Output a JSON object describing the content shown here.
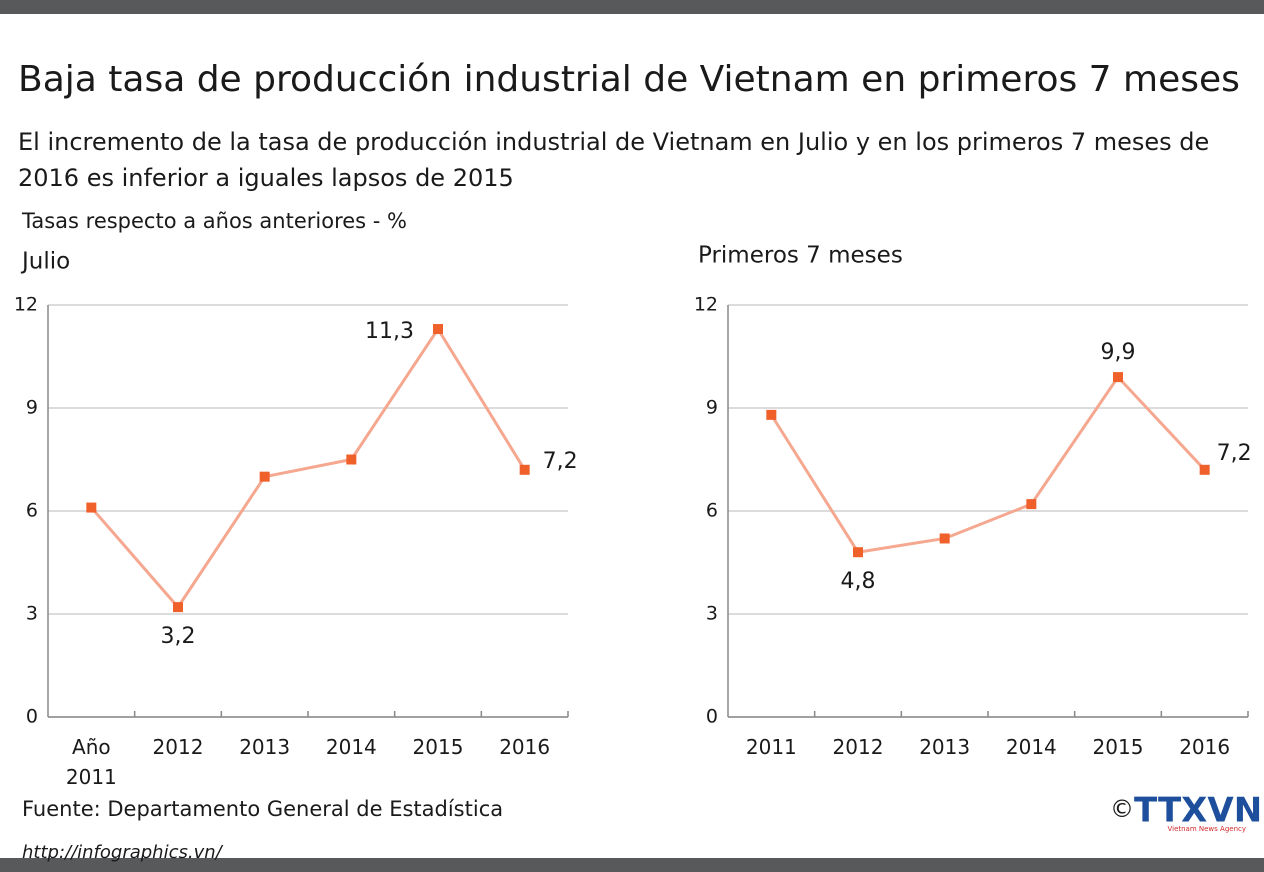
{
  "header": {
    "title": "Baja tasa de producción industrial de Vietnam en primeros 7 meses",
    "subtitle": "El incremento de la tasa de producción industrial de Vietnam en Julio y en los primeros 7 meses de 2016 es inferior a iguales lapsos de 2015",
    "unit_note": "Tasas respecto a años anteriores - %"
  },
  "chart_data": [
    {
      "type": "line",
      "title": "Julio",
      "categories": [
        "Año 2011",
        "2012",
        "2013",
        "2014",
        "2015",
        "2016"
      ],
      "values": [
        6.1,
        3.2,
        7.0,
        7.5,
        11.3,
        7.2
      ],
      "value_labels": [
        null,
        "3,2",
        null,
        null,
        "11,3",
        "7,2"
      ],
      "color": "#f5a78f",
      "marker_color": "#f0602a",
      "ylim": [
        0,
        12
      ],
      "yticks": [
        0,
        3,
        6,
        9,
        12
      ],
      "grid": true
    },
    {
      "type": "line",
      "title": "Primeros 7 meses",
      "categories": [
        "2011",
        "2012",
        "2013",
        "2014",
        "2015",
        "2016"
      ],
      "values": [
        8.8,
        4.8,
        5.2,
        6.2,
        9.9,
        7.2
      ],
      "value_labels": [
        null,
        "4,8",
        null,
        null,
        "9,9",
        "7,2"
      ],
      "color": "#f5a78f",
      "marker_color": "#f0602a",
      "ylim": [
        0,
        12
      ],
      "yticks": [
        0,
        3,
        6,
        9,
        12
      ],
      "grid": true
    }
  ],
  "footer": {
    "source": "Fuente: Departamento General de Estadística",
    "url": "http://infographics.vn/",
    "copyright": "©",
    "logo": "TTXVN",
    "logo_sub": "Vietnam News Agency"
  }
}
